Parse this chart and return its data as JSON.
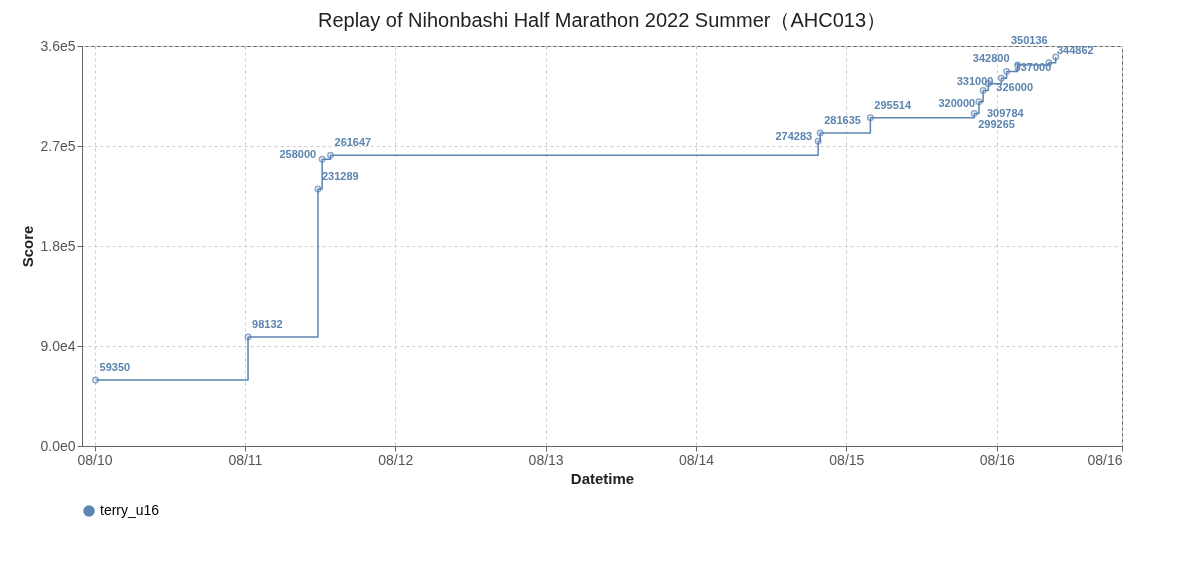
{
  "chart_data": {
    "type": "step",
    "title": "Replay of Nihonbashi Half Marathon 2022 Summer（AHC013）",
    "xlabel": "Datetime",
    "ylabel": "Score",
    "x": [
      "2022-08-10T00:10",
      "2022-08-11T00:30",
      "2022-08-11T11:40",
      "2022-08-11T12:20",
      "2022-08-11T13:40",
      "2022-08-14T19:30",
      "2022-08-14T19:50",
      "2022-08-15T03:50",
      "2022-08-15T20:25",
      "2022-08-15T21:10",
      "2022-08-15T21:50",
      "2022-08-15T22:40",
      "2022-08-16T00:45",
      "2022-08-16T01:35",
      "2022-08-16T03:20",
      "2022-08-16T08:20",
      "2022-08-16T09:25"
    ],
    "series": [
      {
        "name": "terry_u16",
        "color": "#5b84b1",
        "values": [
          59350,
          98132,
          231289,
          258000,
          261647,
          274283,
          281635,
          295514,
          299265,
          309784,
          320000,
          326000,
          331000,
          337000,
          342800,
          344862,
          350136
        ]
      }
    ],
    "data_labels": true,
    "marker": "circle",
    "line_style": "solid",
    "xlim": [
      "2022-08-09T22:00",
      "2022-08-16T20:00"
    ],
    "xticks": [
      {
        "value": "2022-08-10T00:00",
        "label": "08/10"
      },
      {
        "value": "2022-08-11T00:00",
        "label": "08/11"
      },
      {
        "value": "2022-08-12T00:00",
        "label": "08/12"
      },
      {
        "value": "2022-08-13T00:00",
        "label": "08/13"
      },
      {
        "value": "2022-08-14T00:00",
        "label": "08/14"
      },
      {
        "value": "2022-08-15T00:00",
        "label": "08/15"
      },
      {
        "value": "2022-08-16T00:00",
        "label": "08/16"
      },
      {
        "value": "2022-08-16T20:00",
        "label": "08/16"
      }
    ],
    "ylim": [
      0,
      360000
    ],
    "yticks": [
      {
        "value": 0,
        "label": "0.0e0"
      },
      {
        "value": 90000,
        "label": "9.0e4"
      },
      {
        "value": 180000,
        "label": "1.8e5"
      },
      {
        "value": 270000,
        "label": "2.7e5"
      },
      {
        "value": 360000,
        "label": "3.6e5"
      }
    ],
    "grid": true,
    "legend": "bottom"
  }
}
